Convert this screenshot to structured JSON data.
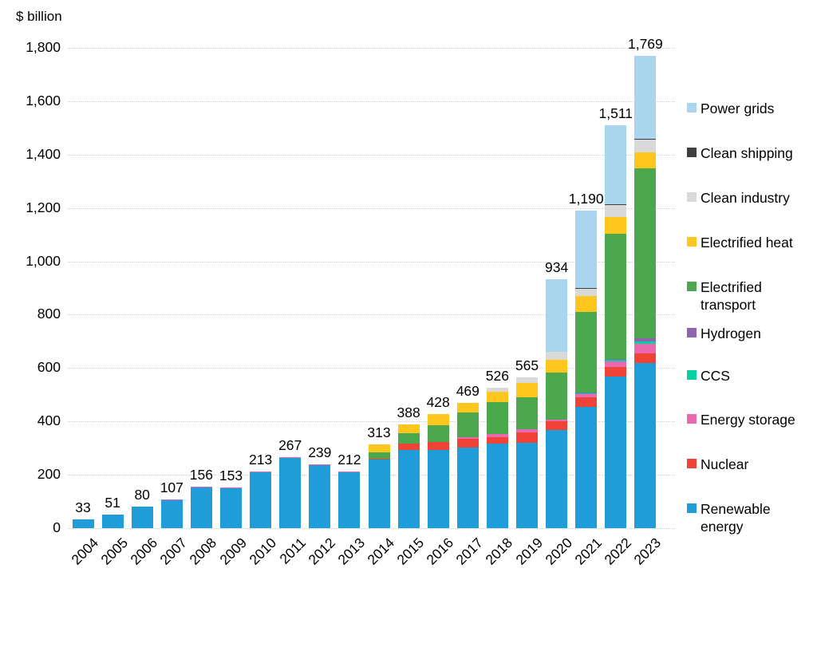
{
  "title": "$ billion",
  "chart_data": {
    "type": "bar",
    "subtype": "stacked",
    "title": "$ billion",
    "xlabel": "",
    "ylabel": "$ billion",
    "ylim": [
      0,
      1800
    ],
    "grid": "horizontal-dotted",
    "legend_position": "right",
    "yticks": [
      "0",
      "200",
      "400",
      "600",
      "800",
      "1,000",
      "1,200",
      "1,400",
      "1,600",
      "1,800"
    ],
    "categories": [
      "2004",
      "2005",
      "2006",
      "2007",
      "2008",
      "2009",
      "2010",
      "2011",
      "2012",
      "2013",
      "2014",
      "2015",
      "2016",
      "2017",
      "2018",
      "2019",
      "2020",
      "2021",
      "2022",
      "2023"
    ],
    "totals": [
      "33",
      "51",
      "80",
      "107",
      "156",
      "153",
      "213",
      "267",
      "239",
      "212",
      "313",
      "388",
      "428",
      "469",
      "526",
      "565",
      "934",
      "1,190",
      "1,511",
      "1,769"
    ],
    "series": [
      {
        "name": "Renewable energy",
        "color": "#1F9DD9",
        "values": [
          33,
          51,
          80,
          106,
          155,
          152,
          211,
          264,
          236,
          209,
          258,
          293,
          292,
          303,
          317,
          320,
          369,
          455,
          567,
          620
        ]
      },
      {
        "name": "Nuclear",
        "color": "#EF4337",
        "values": [
          0,
          0,
          0,
          0,
          0,
          0,
          0,
          0,
          0,
          0,
          2,
          25,
          30,
          31,
          25,
          40,
          33,
          35,
          36,
          34
        ]
      },
      {
        "name": "Energy storage",
        "color": "#EA68B0",
        "values": [
          0,
          0,
          0,
          1,
          1,
          1,
          2,
          3,
          3,
          3,
          0,
          0,
          0,
          6,
          12,
          10,
          5,
          14,
          21,
          36
        ]
      },
      {
        "name": "CCS",
        "color": "#04D0A1",
        "values": [
          0,
          0,
          0,
          0,
          0,
          0,
          0,
          0,
          0,
          0,
          0,
          0,
          0,
          0,
          0,
          0,
          0,
          2,
          8,
          10
        ]
      },
      {
        "name": "Hydrogen",
        "color": "#8E64B2",
        "values": [
          0,
          0,
          0,
          0,
          0,
          0,
          0,
          0,
          0,
          0,
          0,
          0,
          0,
          0,
          0,
          0,
          0,
          2,
          2,
          12
        ]
      },
      {
        "name": "Electrified transport",
        "color": "#4CA84F",
        "values": [
          0,
          0,
          0,
          0,
          0,
          0,
          0,
          0,
          0,
          0,
          25,
          37,
          65,
          93,
          117,
          120,
          176,
          302,
          468,
          636
        ]
      },
      {
        "name": "Electrified heat",
        "color": "#FFC61E",
        "values": [
          0,
          0,
          0,
          0,
          0,
          0,
          0,
          0,
          0,
          0,
          28,
          33,
          41,
          36,
          40,
          55,
          49,
          60,
          64,
          61
        ]
      },
      {
        "name": "Clean industry",
        "color": "#D9D9D9",
        "values": [
          0,
          0,
          0,
          0,
          0,
          0,
          0,
          0,
          0,
          0,
          0,
          0,
          0,
          0,
          15,
          20,
          30,
          30,
          45,
          46
        ]
      },
      {
        "name": "Clean shipping",
        "color": "#3F3F3F",
        "values": [
          0,
          0,
          0,
          0,
          0,
          0,
          0,
          0,
          0,
          0,
          0,
          0,
          0,
          0,
          0,
          0,
          0,
          1,
          3,
          4
        ]
      },
      {
        "name": "Power grids",
        "color": "#A9D5EE",
        "values": [
          0,
          0,
          0,
          0,
          0,
          0,
          0,
          0,
          0,
          0,
          0,
          0,
          0,
          0,
          0,
          0,
          272,
          289,
          297,
          310
        ]
      }
    ],
    "legend_order_top_to_bottom": [
      "Power grids",
      "Clean shipping",
      "Clean industry",
      "Electrified heat",
      "Electrified transport",
      "Hydrogen",
      "CCS",
      "Energy storage",
      "Nuclear",
      "Renewable energy"
    ]
  }
}
